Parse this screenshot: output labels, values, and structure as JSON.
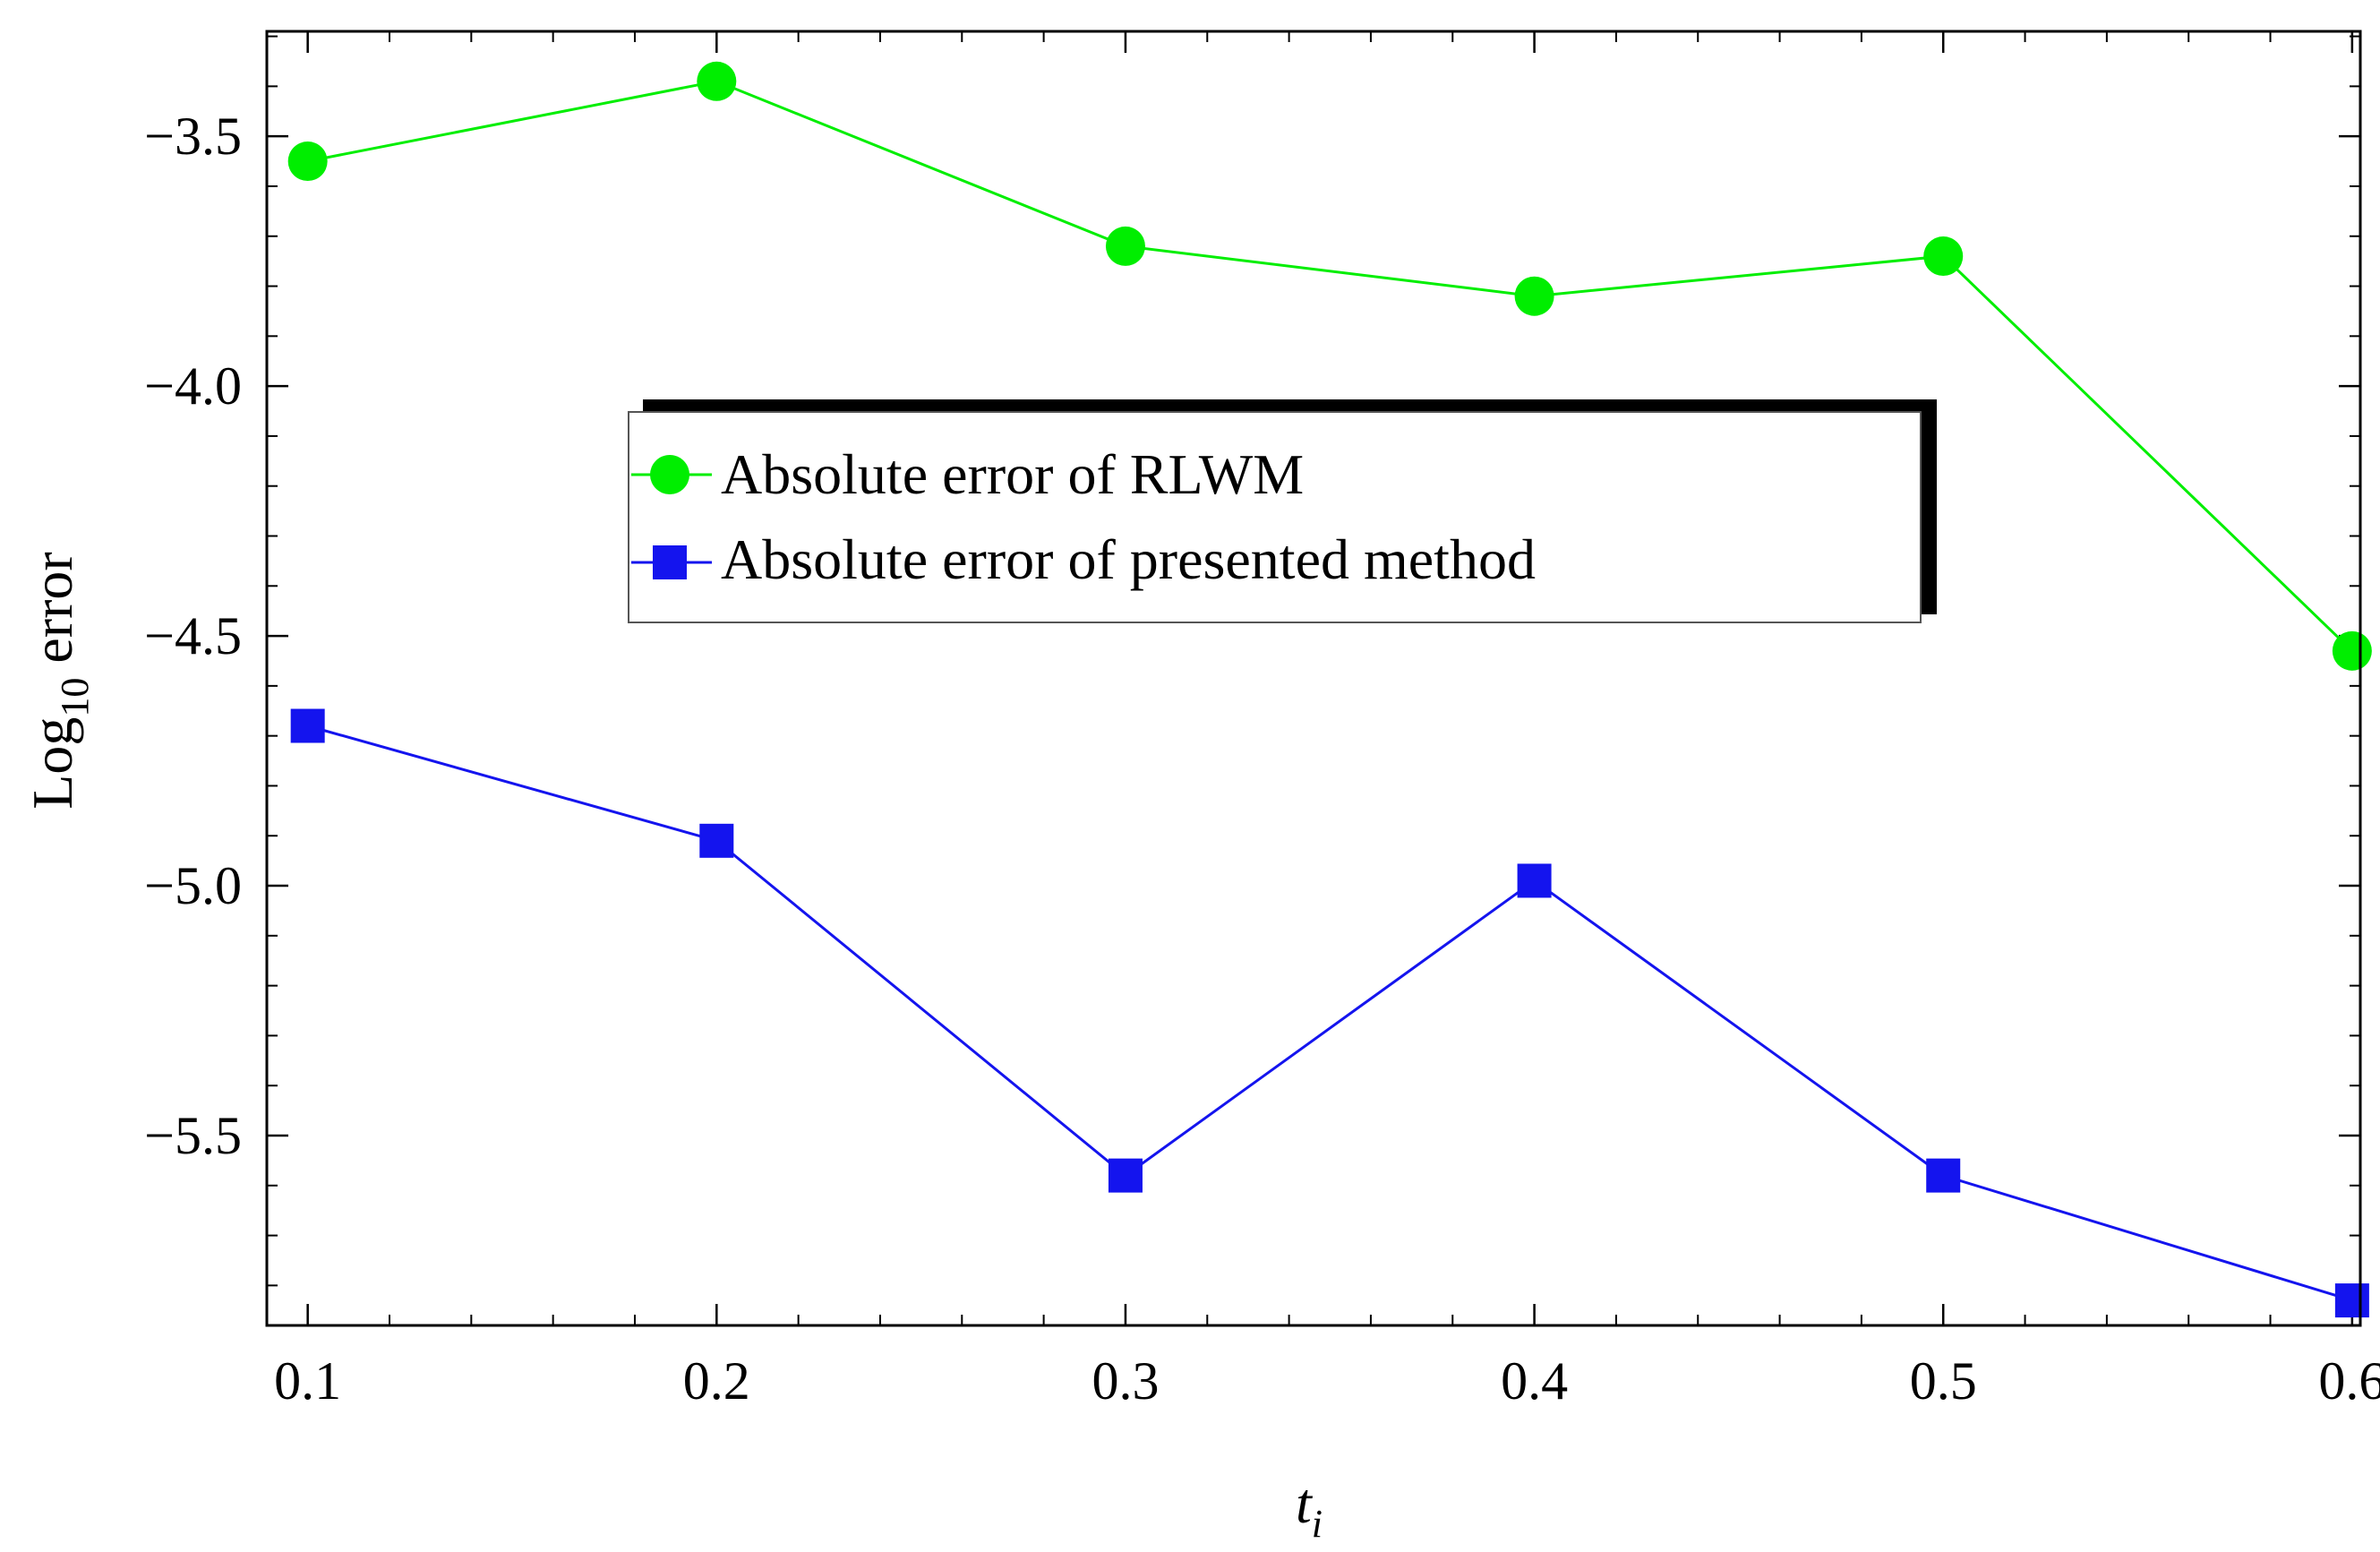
{
  "chart_data": {
    "type": "line",
    "x": [
      0.1,
      0.2,
      0.3,
      0.4,
      0.5,
      0.6
    ],
    "x_tick_labels": [
      "0.1",
      "0.2",
      "0.3",
      "0.4",
      "0.5",
      "0.6"
    ],
    "y_tick_values": [
      -3.5,
      -4.0,
      -4.5,
      -5.0,
      -5.5
    ],
    "y_tick_labels": [
      "−3.5",
      "−4.0",
      "−4.5",
      "−5.0",
      "−5.5"
    ],
    "xlim": [
      0.09,
      0.602
    ],
    "ylim": [
      -5.88,
      -3.29
    ],
    "xlabel_main": "t",
    "xlabel_sub": "i",
    "ylabel_main": "Log",
    "ylabel_sub": "10",
    "ylabel_rest": " error",
    "legend_position": "center",
    "grid": false,
    "series": [
      {
        "name": "Absolute error of RLWM",
        "marker": "circle",
        "color": "#00ee00",
        "values": [
          -3.55,
          -3.39,
          -3.72,
          -3.82,
          -3.74,
          -4.53
        ]
      },
      {
        "name": "Absolute error of presented method",
        "marker": "square",
        "color": "#1414ee",
        "values": [
          -4.68,
          -4.91,
          -5.58,
          -4.99,
          -5.58,
          -5.83
        ]
      }
    ]
  }
}
